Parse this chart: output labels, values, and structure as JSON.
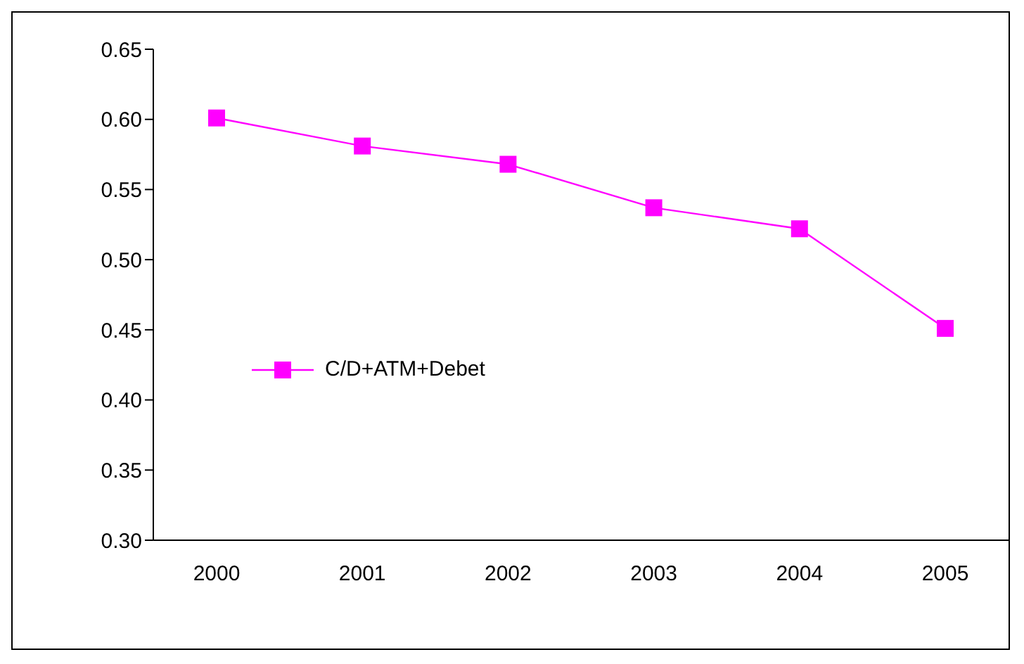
{
  "chart_data": {
    "type": "line",
    "categories": [
      "2000",
      "2001",
      "2002",
      "2003",
      "2004",
      "2005"
    ],
    "series": [
      {
        "name": "C/D+ATM+Debet",
        "color": "#ff00ff",
        "values": [
          0.601,
          0.581,
          0.568,
          0.537,
          0.522,
          0.451
        ]
      }
    ],
    "ylim": [
      0.3,
      0.65
    ],
    "yticks": [
      {
        "value": 0.3,
        "label": "0.30"
      },
      0.35,
      {
        "value": 0.4,
        "label": "0.40"
      },
      0.45,
      {
        "value": 0.5,
        "label": "0.50"
      },
      0.55,
      {
        "value": 0.6,
        "label": "0.60"
      },
      0.65
    ],
    "grid": false,
    "legend": "left",
    "marker": "square",
    "line_style": "solid"
  }
}
